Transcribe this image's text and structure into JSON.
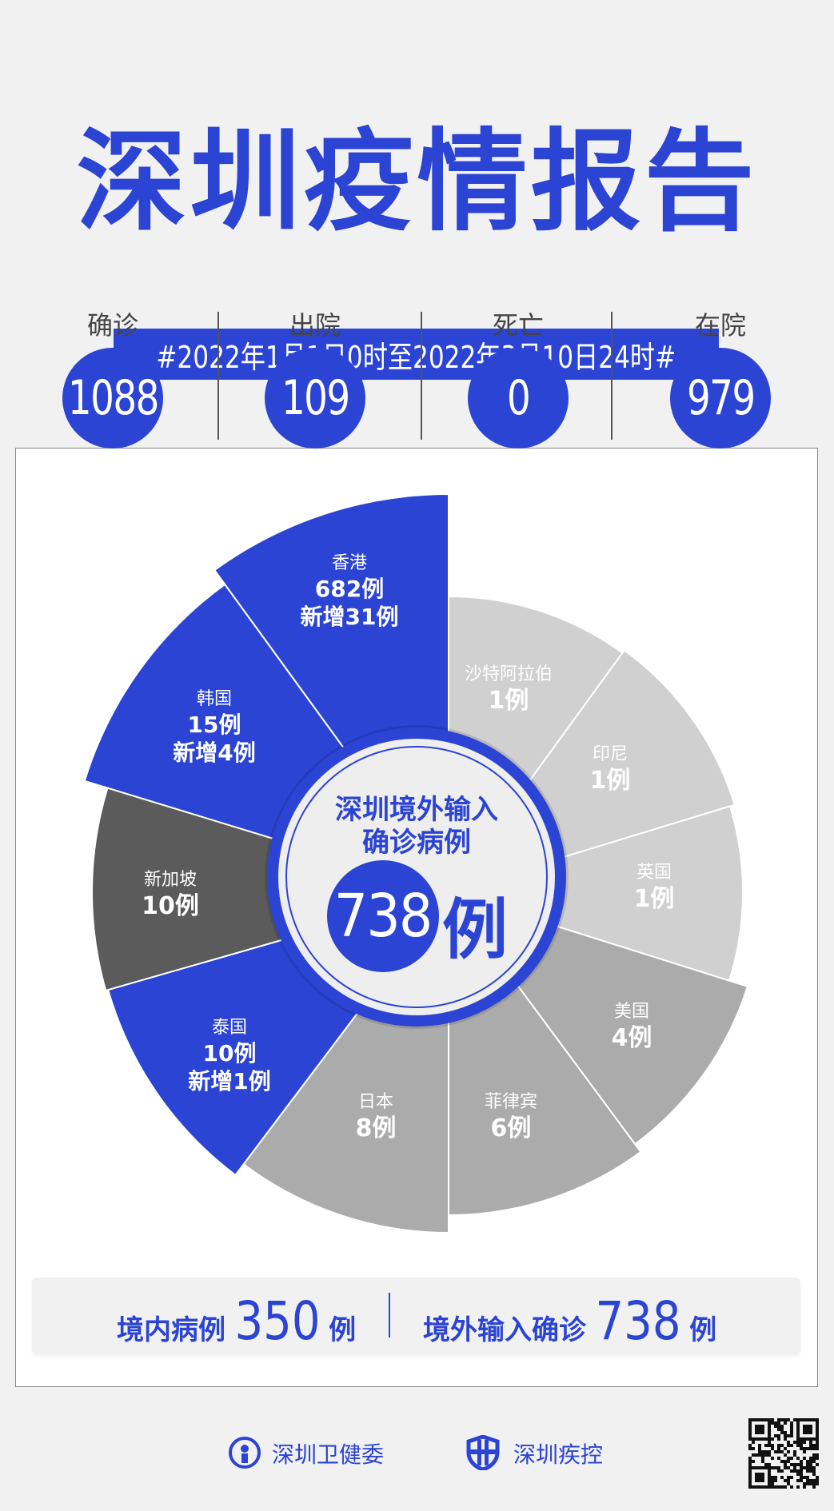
{
  "header": {
    "title": "深圳疫情报告",
    "date_range": "#2022年1月1日0时至2022年3月10日24时#"
  },
  "stats": [
    {
      "label": "确诊",
      "value": "1088"
    },
    {
      "label": "出院",
      "value": "109"
    },
    {
      "label": "死亡",
      "value": "0"
    },
    {
      "label": "在院",
      "value": "979"
    }
  ],
  "colors": {
    "brand_blue": "#2b44d4",
    "dark_gray": "#5b5b5b",
    "light_gray": "#d0d0d0",
    "mid_gray": "#ababab"
  },
  "chart_data": {
    "type": "pie",
    "center": {
      "line1": "深圳境外输入",
      "line2": "确诊病例",
      "total": "738",
      "unit": "例"
    },
    "regions": [
      {
        "name": "沙特阿拉伯",
        "count": "1例",
        "value": 1,
        "color": "#d0d0d0"
      },
      {
        "name": "印尼",
        "count": "1例",
        "value": 1,
        "color": "#d0d0d0"
      },
      {
        "name": "英国",
        "count": "1例",
        "value": 1,
        "color": "#d0d0d0"
      },
      {
        "name": "美国",
        "count": "4例",
        "value": 4,
        "color": "#ababab"
      },
      {
        "name": "菲律宾",
        "count": "6例",
        "value": 6,
        "color": "#ababab"
      },
      {
        "name": "日本",
        "count": "8例",
        "value": 8,
        "color": "#ababab"
      },
      {
        "name": "泰国",
        "count": "10例",
        "value": 10,
        "added": "新增1例",
        "color": "#2b44d4"
      },
      {
        "name": "新加坡",
        "count": "10例",
        "value": 10,
        "color": "#5b5b5b"
      },
      {
        "name": "韩国",
        "count": "15例",
        "value": 15,
        "added": "新增4例",
        "color": "#2b44d4"
      },
      {
        "name": "香港",
        "count": "682例",
        "value": 682,
        "added": "新增31例",
        "color": "#2b44d4"
      }
    ]
  },
  "summary": {
    "local_label": "境内病例",
    "local_value": "350",
    "local_unit": "例",
    "imported_label": "境外输入确诊",
    "imported_value": "738",
    "imported_unit": "例"
  },
  "footer": {
    "org1": "深圳卫健委",
    "org2": "深圳疾控"
  }
}
